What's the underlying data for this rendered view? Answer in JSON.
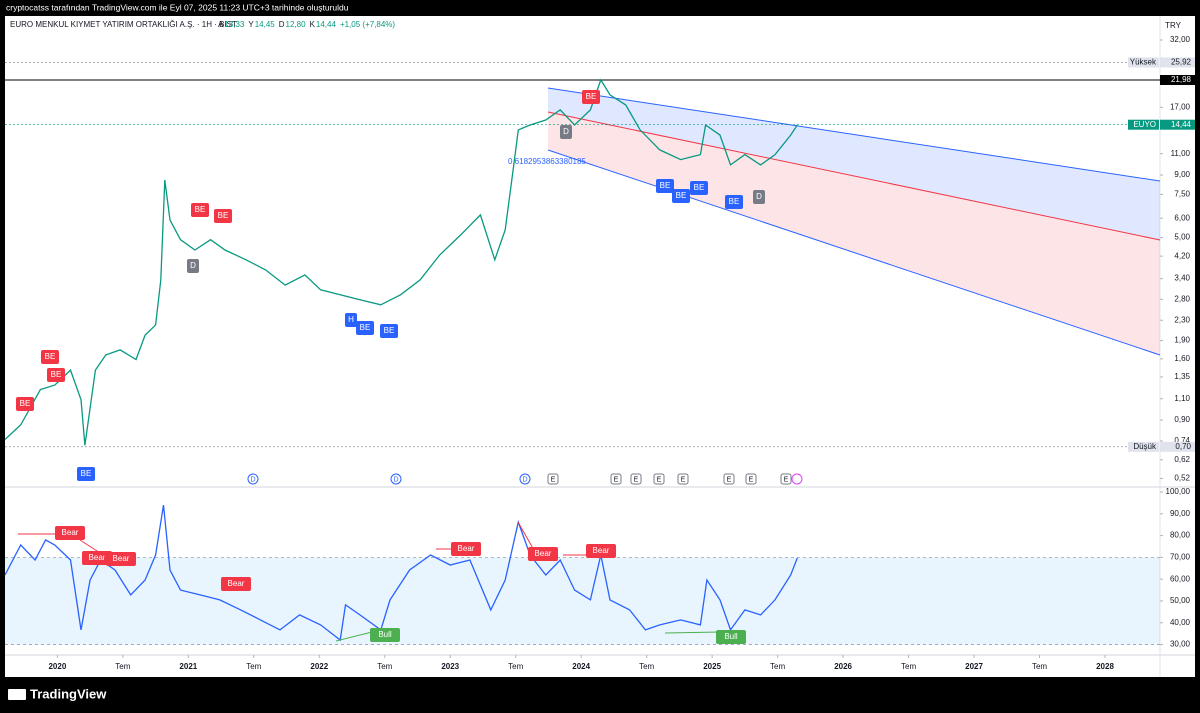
{
  "header": {
    "credit": "cryptocatss tarafından TradingView.com ile Eyl 07, 2025 11:23 UTC+3 tarihinde oluşturuldu",
    "symbol": "EURO MENKUL KIYMET YATIRIM ORTAKLIĞI A.Ş. · 1H · BIST",
    "ohlc": [
      {
        "label": "A",
        "value": "13,33"
      },
      {
        "label": "Y",
        "value": "14,45"
      },
      {
        "label": "D",
        "value": "12,80"
      },
      {
        "label": "K",
        "value": "14,44"
      }
    ],
    "change": "+1,05 (+7,84%)",
    "currency": "TRY"
  },
  "footer": {
    "brand": "TradingView"
  },
  "chart_data": [
    {
      "type": "line",
      "name": "EUYO",
      "color": "#089981",
      "ylog": true,
      "x": [
        2019.6,
        2019.72,
        2019.87,
        2019.98,
        2020.1,
        2020.18,
        2020.21,
        2020.29,
        2020.37,
        2020.48,
        2020.6,
        2020.67,
        2020.75,
        2020.79,
        2020.82,
        2020.86,
        2020.94,
        2021.05,
        2021.17,
        2021.28,
        2021.44,
        2021.59,
        2021.74,
        2021.89,
        2022.01,
        2022.16,
        2022.31,
        2022.47,
        2022.62,
        2022.77,
        2022.92,
        2023.08,
        2023.23,
        2023.34,
        2023.42,
        2023.47,
        2023.52,
        2023.61,
        2023.73,
        2023.84,
        2023.95,
        2024.07,
        2024.15,
        2024.22,
        2024.34,
        2024.45,
        2024.6,
        2024.76,
        2024.91,
        2024.95,
        2025.06,
        2025.14,
        2025.25,
        2025.37,
        2025.48,
        2025.6,
        2025.65
      ],
      "values": [
        0.75,
        0.86,
        1.2,
        1.25,
        1.44,
        1.09,
        0.71,
        1.44,
        1.66,
        1.74,
        1.59,
        2.0,
        2.2,
        3.36,
        8.6,
        5.9,
        4.9,
        4.45,
        4.9,
        4.45,
        4.06,
        3.69,
        3.2,
        3.52,
        3.06,
        2.92,
        2.79,
        2.66,
        2.92,
        3.36,
        4.25,
        5.13,
        6.19,
        4.06,
        5.38,
        8.6,
        13.75,
        14.4,
        15.1,
        16.6,
        14.4,
        16.6,
        22,
        19.1,
        17.4,
        13.75,
        11.4,
        10.4,
        10.9,
        14.4,
        13.1,
        9.9,
        10.9,
        9.9,
        10.9,
        13.1,
        14.4
      ],
      "xlim": [
        2019.6,
        2028.42
      ],
      "ylim": [
        0.48,
        40.1
      ],
      "xticks": [
        {
          "value": 2020,
          "label": "2020"
        },
        {
          "value": 2020.5,
          "label": "Tem"
        },
        {
          "value": 2021,
          "label": "2021"
        },
        {
          "value": 2021.5,
          "label": "Tem"
        },
        {
          "value": 2022,
          "label": "2022"
        },
        {
          "value": 2022.5,
          "label": "Tem"
        },
        {
          "value": 2023,
          "label": "2023"
        },
        {
          "value": 2023.5,
          "label": "Tem"
        },
        {
          "value": 2024,
          "label": "2024"
        },
        {
          "value": 2024.5,
          "label": "Tem"
        },
        {
          "value": 2025,
          "label": "2025"
        },
        {
          "value": 2025.5,
          "label": "Tem"
        },
        {
          "value": 2026,
          "label": "2026"
        },
        {
          "value": 2026.5,
          "label": "Tem"
        },
        {
          "value": 2027,
          "label": "2027"
        },
        {
          "value": 2027.5,
          "label": "Tem"
        },
        {
          "value": 2028,
          "label": "2028"
        }
      ],
      "yticks": [
        {
          "value": 32,
          "label": "32,00"
        },
        {
          "value": 17,
          "label": "17,00"
        },
        {
          "value": 11,
          "label": "11,00"
        },
        {
          "value": 9,
          "label": "9,00"
        },
        {
          "value": 7.5,
          "label": "7,50"
        },
        {
          "value": 6,
          "label": "6,00"
        },
        {
          "value": 5,
          "label": "5,00"
        },
        {
          "value": 4.2,
          "label": "4,20"
        },
        {
          "value": 3.4,
          "label": "3,40"
        },
        {
          "value": 2.8,
          "label": "2,80"
        },
        {
          "value": 2.3,
          "label": "2,30"
        },
        {
          "value": 1.9,
          "label": "1,90"
        },
        {
          "value": 1.6,
          "label": "1,60"
        },
        {
          "value": 1.35,
          "label": "1,35"
        },
        {
          "value": 1.1,
          "label": "1,10"
        },
        {
          "value": 0.9,
          "label": "0,90"
        },
        {
          "value": 0.74,
          "label": "0,74"
        },
        {
          "value": 0.62,
          "label": "0,62"
        },
        {
          "value": 0.52,
          "label": "0,52"
        }
      ],
      "price_lines": [
        {
          "name": "Yüksek",
          "value": 25.92,
          "label": "25,92",
          "color": "#787b86"
        },
        {
          "value": 21.98,
          "label": "21,98",
          "color": "#000000"
        },
        {
          "name": "EUYO",
          "value": 14.44,
          "label": "14,44",
          "color": "#089981"
        },
        {
          "name": "Düşük",
          "value": 0.7,
          "label": "0,70",
          "color": "#787b86"
        }
      ],
      "annotations": [
        {
          "text": "BE",
          "color": "#f23645"
        },
        {
          "text": "BE",
          "color": "#f23645"
        },
        {
          "text": "BE",
          "color": "#f23645"
        },
        {
          "text": "BE",
          "color": "#f23645"
        },
        {
          "text": "BE",
          "color": "#f23645"
        },
        {
          "text": "BE",
          "color": "#f23645"
        },
        {
          "text": "BE",
          "color": "#2962ff"
        },
        {
          "text": "BE",
          "color": "#2962ff"
        },
        {
          "text": "BE",
          "color": "#2962ff"
        },
        {
          "text": "BE",
          "color": "#2962ff"
        },
        {
          "text": "BE",
          "color": "#2962ff"
        },
        {
          "text": "BE",
          "color": "#2962ff"
        },
        {
          "text": "BE",
          "color": "#2962ff"
        },
        {
          "text": "H",
          "color": "#2962ff"
        },
        {
          "text": "D",
          "color": "#787b86"
        },
        {
          "text": "D",
          "color": "#787b86"
        },
        {
          "text": "D",
          "color": "#787b86"
        },
        {
          "text": "0.6182953863380185",
          "color": "#2962ff"
        }
      ],
      "events": [
        "D",
        "D",
        "D",
        "E",
        "E",
        "E",
        "E",
        "E",
        "E",
        "E",
        "E"
      ]
    },
    {
      "type": "line",
      "name": "RSI",
      "color": "#2962ff",
      "x": [
        2019.6,
        2019.72,
        2019.83,
        2019.91,
        2019.98,
        2020.1,
        2020.18,
        2020.25,
        2020.33,
        2020.44,
        2020.56,
        2020.67,
        2020.75,
        2020.81,
        2020.86,
        2020.94,
        2021.09,
        2021.24,
        2021.4,
        2021.55,
        2021.7,
        2021.85,
        2022.01,
        2022.16,
        2022.2,
        2022.31,
        2022.47,
        2022.54,
        2022.69,
        2022.85,
        2023.0,
        2023.15,
        2023.31,
        2023.42,
        2023.52,
        2023.61,
        2023.73,
        2023.84,
        2023.95,
        2024.07,
        2024.15,
        2024.22,
        2024.37,
        2024.49,
        2024.6,
        2024.76,
        2024.91,
        2024.96,
        2025.06,
        2025.14,
        2025.25,
        2025.37,
        2025.48,
        2025.6,
        2025.65
      ],
      "values": [
        61.9,
        75.7,
        68.8,
        78.0,
        75.7,
        68.8,
        36.7,
        59.6,
        68.8,
        64.2,
        52.8,
        59.6,
        71.1,
        94.0,
        64.2,
        55.0,
        52.8,
        50.5,
        45.9,
        41.3,
        36.7,
        43.6,
        39.0,
        32.1,
        48.2,
        43.6,
        36.7,
        50.5,
        64.2,
        71.1,
        66.5,
        68.8,
        45.9,
        59.6,
        86.2,
        71.1,
        61.9,
        68.8,
        55.0,
        50.5,
        71.1,
        50.5,
        45.9,
        36.7,
        39.0,
        41.3,
        39.0,
        59.6,
        50.5,
        36.7,
        45.9,
        43.6,
        50.5,
        61.9,
        69.7
      ],
      "xlim": [
        2019.6,
        2028.42
      ],
      "ylim": [
        25.2,
        102.3
      ],
      "yticks": [
        {
          "value": 100,
          "label": "100,00"
        },
        {
          "value": 90,
          "label": "90,00"
        },
        {
          "value": 80,
          "label": "80,00"
        },
        {
          "value": 70,
          "label": "70,00"
        },
        {
          "value": 60,
          "label": "60,00"
        },
        {
          "value": 50,
          "label": "50,00"
        },
        {
          "value": 40,
          "label": "40,00"
        },
        {
          "value": 30,
          "label": "30,00"
        }
      ],
      "band": [
        30,
        70
      ],
      "annotations": [
        {
          "text": "Bear",
          "color": "#f23645"
        },
        {
          "text": "Bear",
          "color": "#f23645"
        },
        {
          "text": "Bear",
          "color": "#f23645"
        },
        {
          "text": "Bear",
          "color": "#f23645"
        },
        {
          "text": "Bear",
          "color": "#f23645"
        },
        {
          "text": "Bear",
          "color": "#f23645"
        },
        {
          "text": "Bear",
          "color": "#f23645"
        },
        {
          "text": "Bull",
          "color": "#4caf50"
        },
        {
          "text": "Bull",
          "color": "#4caf50"
        }
      ]
    }
  ]
}
